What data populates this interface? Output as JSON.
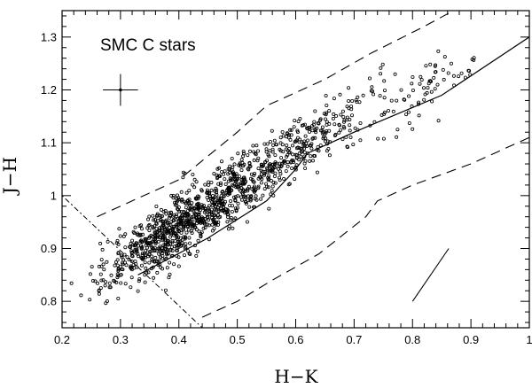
{
  "chart_data": {
    "type": "scatter",
    "title": "",
    "annotation": "SMC C stars",
    "xlabel": "H−K",
    "ylabel": "J−H",
    "xlim": [
      0.2,
      1.0
    ],
    "ylim": [
      0.75,
      1.35
    ],
    "x_ticks": [
      0.2,
      0.3,
      0.4,
      0.5,
      0.6,
      0.7,
      0.8,
      0.9,
      1.0
    ],
    "x_tick_labels": [
      "0.2",
      "0.3",
      "0.4",
      "0.5",
      "0.6",
      "0.7",
      "0.8",
      "0.9",
      "1"
    ],
    "y_ticks": [
      0.8,
      0.9,
      1.0,
      1.1,
      1.2,
      1.3
    ],
    "y_tick_labels": [
      "0.8",
      "0.9",
      "1",
      "1.1",
      "1.2",
      "1.3"
    ],
    "grid": false,
    "error_cross": {
      "x": 0.3,
      "y": 1.2,
      "xerr": 0.03,
      "yerr": 0.03
    },
    "reddening_vector": {
      "x": [
        0.8,
        0.862
      ],
      "y": [
        0.8,
        0.9
      ]
    },
    "solid_line": {
      "x": [
        0.33,
        0.45,
        0.55,
        0.6,
        0.62,
        0.7,
        0.85,
        1.0
      ],
      "y": [
        0.85,
        0.92,
        0.99,
        1.05,
        1.08,
        1.12,
        1.19,
        1.3
      ]
    },
    "upper_dashed_line": {
      "x": [
        0.26,
        0.4,
        0.5,
        0.55,
        0.65,
        0.73,
        0.82,
        0.87
      ],
      "y": [
        0.96,
        1.03,
        1.12,
        1.17,
        1.22,
        1.27,
        1.32,
        1.35
      ]
    },
    "lower_dashed_line": {
      "x": [
        0.44,
        0.5,
        0.56,
        0.64,
        0.72,
        0.74,
        0.8,
        0.9,
        1.0
      ],
      "y": [
        0.77,
        0.8,
        0.84,
        0.89,
        0.96,
        0.99,
        1.02,
        1.06,
        1.11
      ]
    },
    "dotted_line": {
      "x": [
        0.2,
        0.44
      ],
      "y": [
        1.0,
        0.75
      ]
    },
    "point_cloud": {
      "count": 1300,
      "cluster_centers": [
        {
          "x": 0.36,
          "y": 0.91,
          "weight": 0.33
        },
        {
          "x": 0.45,
          "y": 0.98,
          "weight": 0.3
        },
        {
          "x": 0.55,
          "y": 1.05,
          "weight": 0.22
        },
        {
          "x": 0.67,
          "y": 1.14,
          "weight": 0.1
        },
        {
          "x": 0.82,
          "y": 1.2,
          "weight": 0.05
        }
      ]
    }
  }
}
